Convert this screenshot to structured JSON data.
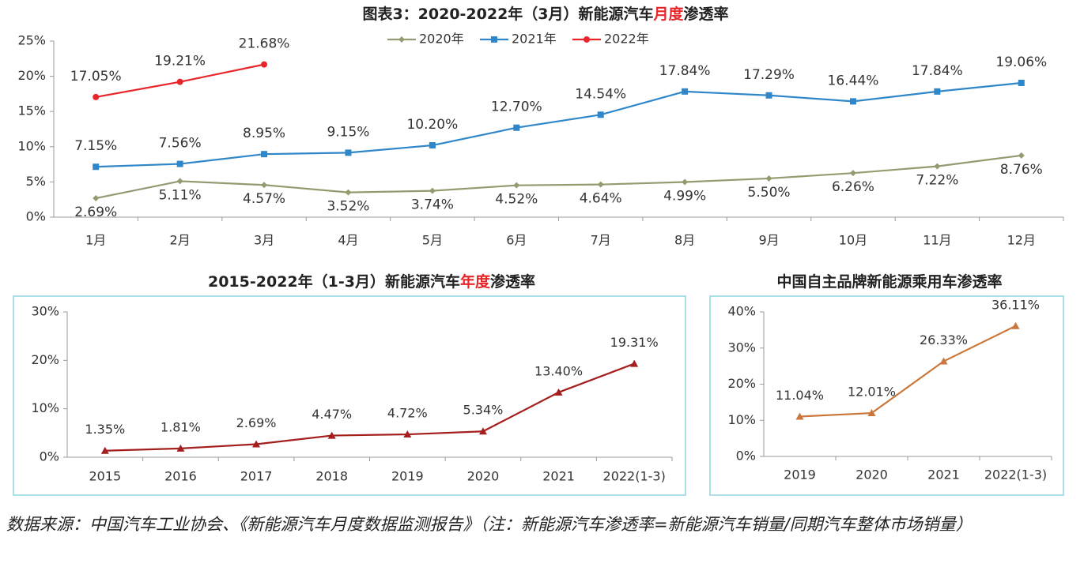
{
  "chart_data": [
    {
      "type": "line",
      "title": [
        "图表3：2020-2022年（3月）新能源汽车",
        "月度",
        "渗透率"
      ],
      "title_colors": [
        "#222222",
        "#e8262a",
        "#222222"
      ],
      "categories": [
        "1月",
        "2月",
        "3月",
        "4月",
        "5月",
        "6月",
        "7月",
        "8月",
        "9月",
        "10月",
        "11月",
        "12月"
      ],
      "ylim": [
        0,
        25
      ],
      "yticks": [
        {
          "value": 0,
          "label": "0%"
        },
        {
          "value": 5,
          "label": "5%"
        },
        {
          "value": 10,
          "label": "10%"
        },
        {
          "value": 15,
          "label": "15%"
        },
        {
          "value": 20,
          "label": "20%"
        },
        {
          "value": 25,
          "label": "25%"
        }
      ],
      "legend": "top",
      "series": [
        {
          "name": "2020年",
          "color": "#939c70",
          "label_color": "#5f6636",
          "marker": "diamond",
          "label_position": "below",
          "values": [
            2.69,
            5.11,
            4.57,
            3.52,
            3.74,
            4.52,
            4.64,
            4.99,
            5.5,
            6.26,
            7.22,
            8.76
          ],
          "value_labels": [
            "2.69%",
            "5.11%",
            "4.57%",
            "3.52%",
            "3.74%",
            "4.52%",
            "4.64%",
            "4.99%",
            "5.50%",
            "6.26%",
            "7.22%",
            "8.76%"
          ]
        },
        {
          "name": "2021年",
          "color": "#2f87c9",
          "label_color": "#3f6e9c",
          "marker": "square",
          "label_position": "above",
          "values": [
            7.15,
            7.56,
            8.95,
            9.15,
            10.2,
            12.7,
            14.54,
            17.84,
            17.29,
            16.44,
            17.84,
            19.06
          ],
          "value_labels": [
            "7.15%",
            "7.56%",
            "8.95%",
            "9.15%",
            "10.20%",
            "12.70%",
            "14.54%",
            "17.84%",
            "17.29%",
            "16.44%",
            "17.84%",
            "19.06%"
          ]
        },
        {
          "name": "2022年",
          "color": "#e8262a",
          "label_color": "#333333",
          "marker": "circle",
          "label_position": "above",
          "values": [
            17.05,
            19.21,
            21.68,
            null,
            null,
            null,
            null,
            null,
            null,
            null,
            null,
            null
          ],
          "value_labels": [
            "17.05%",
            "19.21%",
            "21.68%",
            null,
            null,
            null,
            null,
            null,
            null,
            null,
            null,
            null
          ]
        }
      ]
    },
    {
      "type": "line",
      "title": [
        "2015-2022年（1-3月）新能源汽车",
        "年度",
        "渗透率"
      ],
      "title_colors": [
        "#222222",
        "#e8262a",
        "#222222"
      ],
      "categories": [
        "2015",
        "2016",
        "2017",
        "2018",
        "2019",
        "2020",
        "2021",
        "2022(1-3)"
      ],
      "ylim": [
        0,
        30
      ],
      "yticks": [
        {
          "value": 0,
          "label": "0%"
        },
        {
          "value": 10,
          "label": "10%"
        },
        {
          "value": 20,
          "label": "20%"
        },
        {
          "value": 30,
          "label": "30%"
        }
      ],
      "series": [
        {
          "color": "#a51e1e",
          "label_color": "#333333",
          "marker": "triangle",
          "label_position": "above",
          "values": [
            1.35,
            1.81,
            2.69,
            4.47,
            4.72,
            5.34,
            13.4,
            19.31
          ],
          "value_labels": [
            "1.35%",
            "1.81%",
            "2.69%",
            "4.47%",
            "4.72%",
            "5.34%",
            "13.40%",
            "19.31%"
          ]
        }
      ]
    },
    {
      "type": "line",
      "title": [
        "中国自主品牌新能源乘用车渗透率"
      ],
      "title_colors": [
        "#222222"
      ],
      "categories": [
        "2019",
        "2020",
        "2021",
        "2022(1-3)"
      ],
      "ylim": [
        0,
        40
      ],
      "yticks": [
        {
          "value": 0,
          "label": "0%"
        },
        {
          "value": 10,
          "label": "10%"
        },
        {
          "value": 20,
          "label": "20%"
        },
        {
          "value": 30,
          "label": "30%"
        },
        {
          "value": 40,
          "label": "40%"
        }
      ],
      "series": [
        {
          "color": "#c9773a",
          "label_color": "#333333",
          "marker": "triangle",
          "label_position": "above",
          "values": [
            11.04,
            12.01,
            26.33,
            36.11
          ],
          "value_labels": [
            "11.04%",
            "12.01%",
            "26.33%",
            "36.11%"
          ]
        }
      ]
    }
  ],
  "source": "数据来源：中国汽车工业协会、《新能源汽车月度数据监测报告》（注：新能源汽车渗透率=新能源汽车销量/同期汽车整体市场销量）"
}
